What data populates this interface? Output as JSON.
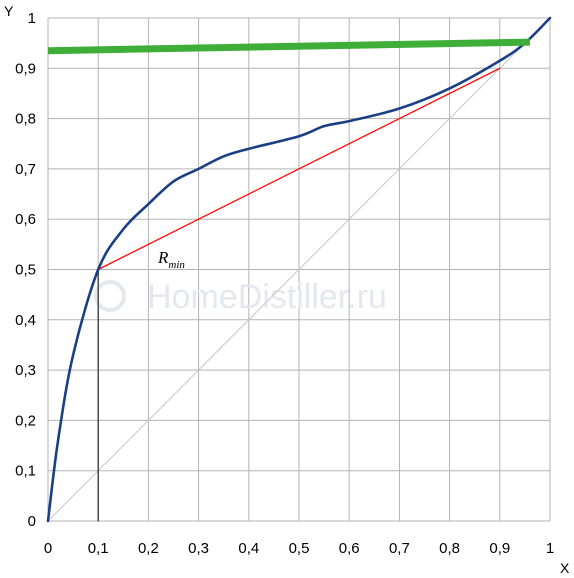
{
  "chart_data": {
    "type": "line",
    "xlabel": "X",
    "ylabel": "Y",
    "xlim": [
      0,
      1
    ],
    "ylim": [
      0,
      1
    ],
    "grid": true,
    "x_ticks": [
      0,
      0.1,
      0.2,
      0.3,
      0.4,
      0.5,
      0.6,
      0.7,
      0.8,
      0.9,
      1
    ],
    "x_tick_labels": [
      "0",
      "0,1",
      "0,2",
      "0,3",
      "0,4",
      "0,5",
      "0,6",
      "0,7",
      "0,8",
      "0,9",
      "1"
    ],
    "y_ticks": [
      0,
      0.1,
      0.2,
      0.3,
      0.4,
      0.5,
      0.6,
      0.7,
      0.8,
      0.9,
      1
    ],
    "y_tick_labels": [
      "0",
      "0,1",
      "0,2",
      "0,3",
      "0,4",
      "0,5",
      "0,6",
      "0,7",
      "0,8",
      "0,9",
      "1"
    ],
    "series": [
      {
        "key": "equilibrium",
        "color": "#1a3f86",
        "points": [
          [
            0,
            0
          ],
          [
            0.02,
            0.16
          ],
          [
            0.05,
            0.33
          ],
          [
            0.1,
            0.5
          ],
          [
            0.15,
            0.58
          ],
          [
            0.2,
            0.63
          ],
          [
            0.25,
            0.675
          ],
          [
            0.3,
            0.7
          ],
          [
            0.35,
            0.725
          ],
          [
            0.4,
            0.74
          ],
          [
            0.5,
            0.765
          ],
          [
            0.55,
            0.785
          ],
          [
            0.6,
            0.795
          ],
          [
            0.7,
            0.82
          ],
          [
            0.8,
            0.86
          ],
          [
            0.9,
            0.915
          ],
          [
            0.95,
            0.95
          ],
          [
            1,
            1
          ]
        ]
      },
      {
        "key": "diagonal",
        "color": "#c6c6c6",
        "points": [
          [
            0,
            0
          ],
          [
            1,
            1
          ]
        ]
      },
      {
        "key": "rmin-line",
        "color": "#ff0000",
        "points": [
          [
            0.1,
            0.5
          ],
          [
            0.9,
            0.9
          ]
        ]
      },
      {
        "key": "thick-line",
        "color": "#3fae38",
        "points": [
          [
            0,
            0.935
          ],
          [
            0.96,
            0.952
          ]
        ]
      },
      {
        "key": "vertical-marker",
        "color": "#333333",
        "points": [
          [
            0.1,
            0
          ],
          [
            0.1,
            0.5
          ]
        ]
      }
    ],
    "annotations": [
      {
        "text": "R",
        "subscript": "min",
        "x": 0.22,
        "y": 0.52
      }
    ]
  },
  "watermark": {
    "text": "HomeDistiller.ru",
    "color": "#e3e8ee"
  }
}
